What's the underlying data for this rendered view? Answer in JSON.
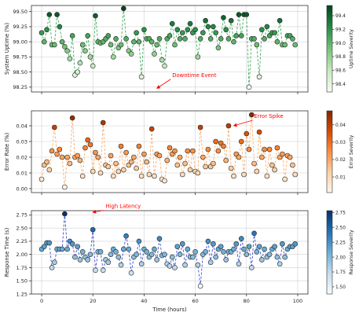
{
  "chart_data": [
    {
      "type": "scatter",
      "title": "",
      "ylabel": "System Uptime (%)",
      "xlabel": "",
      "xlim": [
        -4,
        104
      ],
      "ylim": [
        98.17,
        99.6
      ],
      "xticks": [
        0,
        20,
        40,
        60,
        80,
        100
      ],
      "yticks": [
        98.25,
        98.5,
        98.75,
        99.0,
        99.25,
        99.5
      ],
      "ytick_labels": [
        "98.25",
        "98.50",
        "98.75",
        "99.00",
        "99.25",
        "99.50"
      ],
      "grid": true,
      "line_color": "#41ab5d",
      "colormap": "Greens",
      "colorbar": {
        "label": "Uptime Severity",
        "range": [
          98.28,
          99.55
        ],
        "ticks": [
          98.4,
          98.6,
          98.8,
          99.0,
          99.2,
          99.4
        ],
        "tick_labels": [
          "98.4",
          "98.6",
          "98.8",
          "99.0",
          "99.2",
          "99.4"
        ]
      },
      "annotation": {
        "text": "Downtime Event",
        "x": 51,
        "y": 98.42,
        "arrow_to": [
          45,
          98.23
        ]
      },
      "x": [
        0,
        1,
        2,
        3,
        4,
        5,
        6,
        7,
        8,
        9,
        10,
        11,
        12,
        13,
        14,
        15,
        16,
        17,
        18,
        19,
        20,
        21,
        22,
        23,
        24,
        25,
        26,
        27,
        28,
        29,
        30,
        31,
        32,
        33,
        34,
        35,
        36,
        37,
        38,
        39,
        40,
        41,
        42,
        43,
        44,
        45,
        46,
        47,
        48,
        49,
        50,
        51,
        52,
        53,
        54,
        55,
        56,
        57,
        58,
        59,
        60,
        61,
        62,
        63,
        64,
        65,
        66,
        67,
        68,
        69,
        70,
        71,
        72,
        73,
        74,
        75,
        76,
        77,
        78,
        79,
        80,
        81,
        82,
        83,
        84,
        85,
        86,
        87,
        88,
        89,
        90,
        91,
        92,
        93,
        94,
        95,
        96,
        97,
        98,
        99
      ],
      "y": [
        99.15,
        99.0,
        99.2,
        99.45,
        98.95,
        98.95,
        99.45,
        99.25,
        99.0,
        98.92,
        98.85,
        98.72,
        99.1,
        98.45,
        98.5,
        98.65,
        98.95,
        98.85,
        99.1,
        98.75,
        98.6,
        99.43,
        99.0,
        98.98,
        99.0,
        99.05,
        99.1,
        98.95,
        98.75,
        99.05,
        98.9,
        98.95,
        99.55,
        99.05,
        98.85,
        98.8,
        99.0,
        99.15,
        99.0,
        98.42,
        99.2,
        99.05,
        99.05,
        99.0,
        98.8,
        98.95,
        99.05,
        98.7,
        98.6,
        99.05,
        99.1,
        99.3,
        98.95,
        99.2,
        99.05,
        99.15,
        99.05,
        99.2,
        99.3,
        99.15,
        99.2,
        98.75,
        99.05,
        99.15,
        99.35,
        99.25,
        99.05,
        99.25,
        99.15,
        98.9,
        99.05,
        99.4,
        99.2,
        99.05,
        99.35,
        99.0,
        99.1,
        99.45,
        99.1,
        99.45,
        99.45,
        98.25,
        99.05,
        99.05,
        98.95,
        98.42,
        99.2,
        99.05,
        99.25,
        99.1,
        99.15,
        99.15,
        99.0,
        99.35,
        98.95,
        98.95,
        99.1,
        99.1,
        99.05,
        98.95
      ]
    },
    {
      "type": "scatter",
      "title": "",
      "ylabel": "Error Rate (%)",
      "xlabel": "",
      "xlim": [
        -4,
        104
      ],
      "ylim": [
        -0.0025,
        0.0495
      ],
      "xticks": [
        0,
        20,
        40,
        60,
        80,
        100
      ],
      "yticks": [
        0.0,
        0.01,
        0.02,
        0.03,
        0.04
      ],
      "ytick_labels": [
        "0.00",
        "0.01",
        "0.02",
        "0.03",
        "0.04"
      ],
      "grid": true,
      "line_color": "#fdae6b",
      "colormap": "Oranges",
      "colorbar": {
        "label": "Error Severity",
        "range": [
          0.001,
          0.048
        ],
        "ticks": [
          0.01,
          0.02,
          0.03,
          0.04
        ],
        "tick_labels": [
          "0.01",
          "0.02",
          "0.03",
          "0.04"
        ]
      },
      "annotation": {
        "text": "Error Spike",
        "x": 83,
        "y": 0.045,
        "arrow_to": [
          75,
          0.04
        ]
      },
      "x": [
        0,
        1,
        2,
        3,
        4,
        5,
        6,
        7,
        8,
        9,
        10,
        11,
        12,
        13,
        14,
        15,
        16,
        17,
        18,
        19,
        20,
        21,
        22,
        23,
        24,
        25,
        26,
        27,
        28,
        29,
        30,
        31,
        32,
        33,
        34,
        35,
        36,
        37,
        38,
        39,
        40,
        41,
        42,
        43,
        44,
        45,
        46,
        47,
        48,
        49,
        50,
        51,
        52,
        53,
        54,
        55,
        56,
        57,
        58,
        59,
        60,
        61,
        62,
        63,
        64,
        65,
        66,
        67,
        68,
        69,
        70,
        71,
        72,
        73,
        74,
        75,
        76,
        77,
        78,
        79,
        80,
        81,
        82,
        83,
        84,
        85,
        86,
        87,
        88,
        89,
        90,
        91,
        92,
        93,
        94,
        95,
        96,
        97,
        98,
        99
      ],
      "y": [
        0.006,
        0.015,
        0.017,
        0.012,
        0.024,
        0.039,
        0.022,
        0.025,
        0.02,
        0.001,
        0.02,
        0.016,
        0.045,
        0.02,
        0.021,
        0.018,
        0.008,
        0.026,
        0.031,
        0.028,
        0.011,
        0.023,
        0.02,
        0.01,
        0.042,
        0.015,
        0.014,
        0.021,
        0.008,
        0.016,
        0.011,
        0.027,
        0.012,
        0.023,
        0.015,
        0.017,
        0.02,
        0.013,
        0.027,
        0.008,
        0.022,
        0.017,
        0.009,
        0.038,
        0.008,
        0.022,
        0.021,
        0.006,
        0.005,
        0.018,
        0.026,
        0.022,
        0.024,
        0.015,
        0.02,
        0.009,
        0.016,
        0.024,
        0.012,
        0.024,
        0.011,
        0.01,
        0.039,
        0.02,
        0.014,
        0.025,
        0.014,
        0.016,
        0.03,
        0.024,
        0.029,
        0.027,
        0.018,
        0.04,
        0.013,
        0.008,
        0.022,
        0.02,
        0.03,
        0.009,
        0.035,
        0.025,
        0.047,
        0.016,
        0.011,
        0.036,
        0.02,
        0.025,
        0.008,
        0.025,
        0.015,
        0.012,
        0.026,
        0.02,
        0.022,
        0.006,
        0.021,
        0.02,
        0.015,
        0.009
      ]
    },
    {
      "type": "scatter",
      "title": "",
      "ylabel": "Response Time (s)",
      "xlabel": "Time (hours)",
      "xlim": [
        -4,
        104
      ],
      "ylim": [
        1.25,
        2.83
      ],
      "xticks": [
        0,
        20,
        40,
        60,
        80,
        100
      ],
      "xtick_labels": [
        "0",
        "20",
        "40",
        "60",
        "80",
        "100"
      ],
      "yticks": [
        1.25,
        1.5,
        1.75,
        2.0,
        2.25,
        2.5,
        2.75
      ],
      "ytick_labels": [
        "1.25",
        "1.50",
        "1.75",
        "2.00",
        "2.25",
        "2.50",
        "2.75"
      ],
      "grid": true,
      "line_color": "#3b4fd1",
      "colormap": "Blues",
      "colorbar": {
        "label": "Response Severity",
        "range": [
          1.38,
          2.78
        ],
        "ticks": [
          1.5,
          1.75,
          2.0,
          2.25,
          2.5,
          2.75
        ],
        "tick_labels": [
          "1.50",
          "1.75",
          "2.00",
          "2.25",
          "2.50",
          "2.75"
        ]
      },
      "annotation": {
        "text": "High Latency",
        "x": 25,
        "y": 2.88,
        "arrow_to": [
          20,
          2.8
        ]
      },
      "x": [
        0,
        1,
        2,
        3,
        4,
        5,
        6,
        7,
        8,
        9,
        10,
        11,
        12,
        13,
        14,
        15,
        16,
        17,
        18,
        19,
        20,
        21,
        22,
        23,
        24,
        25,
        26,
        27,
        28,
        29,
        30,
        31,
        32,
        33,
        34,
        35,
        36,
        37,
        38,
        39,
        40,
        41,
        42,
        43,
        44,
        45,
        46,
        47,
        48,
        49,
        50,
        51,
        52,
        53,
        54,
        55,
        56,
        57,
        58,
        59,
        60,
        61,
        62,
        63,
        64,
        65,
        66,
        67,
        68,
        69,
        70,
        71,
        72,
        73,
        74,
        75,
        76,
        77,
        78,
        79,
        80,
        81,
        82,
        83,
        84,
        85,
        86,
        87,
        88,
        89,
        90,
        91,
        92,
        93,
        94,
        95,
        96,
        97,
        98,
        99
      ],
      "y": [
        2.1,
        2.15,
        2.22,
        2.22,
        1.75,
        1.85,
        2.1,
        2.1,
        2.1,
        2.77,
        2.1,
        2.25,
        2.2,
        1.95,
        2.15,
        1.9,
        2.05,
        1.95,
        1.9,
        2.0,
        2.47,
        1.7,
        2.05,
        2.05,
        1.7,
        1.9,
        1.85,
        2.0,
        2.1,
        2.05,
        1.95,
        1.8,
        2.1,
        2.35,
        2.1,
        1.65,
        1.95,
        2.0,
        2.25,
        1.82,
        2.1,
        2.05,
        1.95,
        2.0,
        2.1,
        1.9,
        2.3,
        1.98,
        2.0,
        1.82,
        1.78,
        1.95,
        1.75,
        2.15,
        2.0,
        2.2,
        1.8,
        2.1,
        1.95,
        1.95,
        2.05,
        1.8,
        1.4,
        2.0,
        2.05,
        2.25,
        1.85,
        2.2,
        1.95,
        2.1,
        2.15,
        2.05,
        1.9,
        2.05,
        2.05,
        2.1,
        2.2,
        1.82,
        2.3,
        2.1,
        2.0,
        2.15,
        1.75,
        2.4,
        2.05,
        2.15,
        1.9,
        2.1,
        1.95,
        2.0,
        2.1,
        2.15,
        1.95,
        1.82,
        2.2,
        1.95,
        2.1,
        2.15,
        2.15,
        2.2
      ]
    }
  ]
}
